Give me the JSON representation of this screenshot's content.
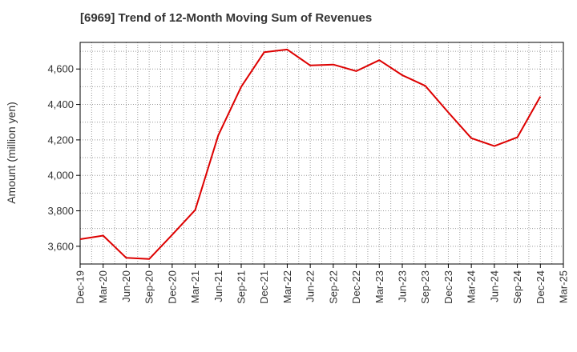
{
  "chart_data": {
    "type": "line",
    "title": "[6969]  Trend of 12-Month Moving Sum of Revenues",
    "xlabel": "",
    "ylabel": "Amount (million yen)",
    "categories": [
      "Dec-19",
      "Mar-20",
      "Jun-20",
      "Sep-20",
      "Dec-20",
      "Mar-21",
      "Jun-21",
      "Sep-21",
      "Dec-21",
      "Mar-22",
      "Jun-22",
      "Sep-22",
      "Dec-22",
      "Mar-23",
      "Jun-23",
      "Sep-23",
      "Dec-23",
      "Mar-24",
      "Jun-24",
      "Sep-24",
      "Dec-24",
      "Mar-25"
    ],
    "yticks": [
      "3,600",
      "3,800",
      "4,000",
      "4,200",
      "4,400",
      "4,600"
    ],
    "ytick_values": [
      3600,
      3800,
      4000,
      4200,
      4400,
      4600
    ],
    "ylim": [
      3500,
      4750
    ],
    "grid": true,
    "series": [
      {
        "values": [
          3640,
          3660,
          3535,
          3528,
          3665,
          3805,
          4225,
          4500,
          4695,
          4710,
          4620,
          4625,
          4588,
          4650,
          4565,
          4505,
          4355,
          4210,
          4165,
          4215,
          4445,
          null
        ]
      }
    ],
    "colors": {
      "line": "#dd0000",
      "grid": "#999999",
      "axis": "#000000"
    }
  }
}
